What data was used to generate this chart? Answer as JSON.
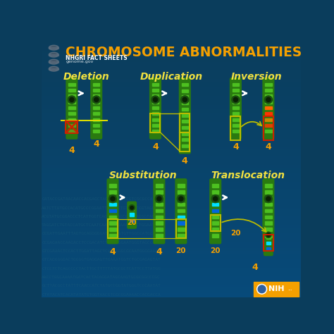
{
  "title": "CHROMOSOME ABNORMALITIES",
  "subtitle": "NHGRI FACT SHEETS",
  "website": "genome.gov",
  "bg_top": "#0a3d5c",
  "bg_bottom": "#1565a0",
  "title_color": "#f5a000",
  "subtitle_color": "#ffffff",
  "label_color": "#f0e040",
  "number_color": "#f5a000",
  "chr_body": "#2a7a10",
  "chr_stripe": "#4dc020",
  "chr_node": "#1a5010",
  "chr_node_inner": "#0a2005",
  "blue_band1": "#00e0ff",
  "blue_band2": "#0066dd",
  "red_band1": "#ff3300",
  "red_band2": "#ff6600",
  "red_band3": "#cc8800",
  "red_band4": "#dd4400",
  "yellow_line": "#dddd00",
  "yellow_box": "#bbbb00",
  "red_box": "#cc2200",
  "nih_bg": "#f5a000",
  "dna_text_color": "#1a5c7a"
}
